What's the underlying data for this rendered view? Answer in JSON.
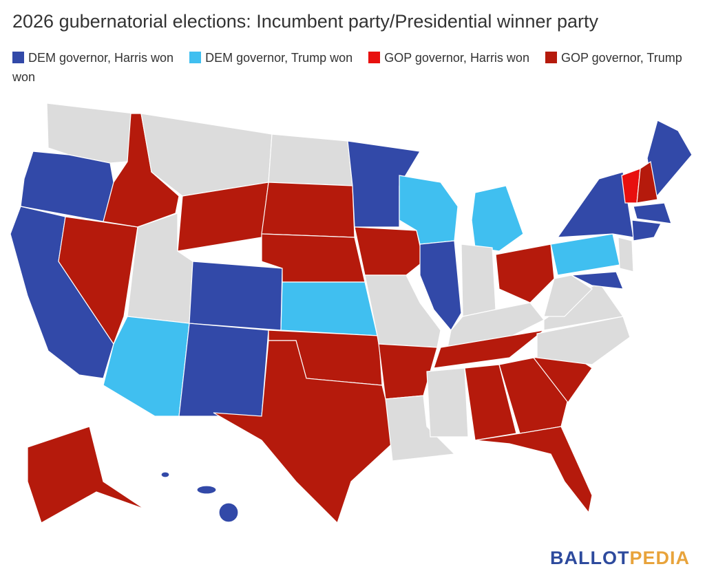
{
  "title": "2026 gubernatorial elections: Incumbent party/Presidential winner party",
  "legend": [
    {
      "label": "DEM governor, Harris won",
      "color": "#3249a8"
    },
    {
      "label": "DEM governor, Trump won",
      "color": "#40bff0"
    },
    {
      "label": "GOP governor, Harris won",
      "color": "#e8100e"
    },
    {
      "label": "GOP governor, Trump won",
      "color": "#b51a0c"
    }
  ],
  "no_election_color": "#dcdcdc",
  "logo": [
    {
      "text": "BALLOT",
      "color": "#2d4a9d"
    },
    {
      "text": "PEDIA",
      "color": "#e8a33b"
    }
  ]
}
